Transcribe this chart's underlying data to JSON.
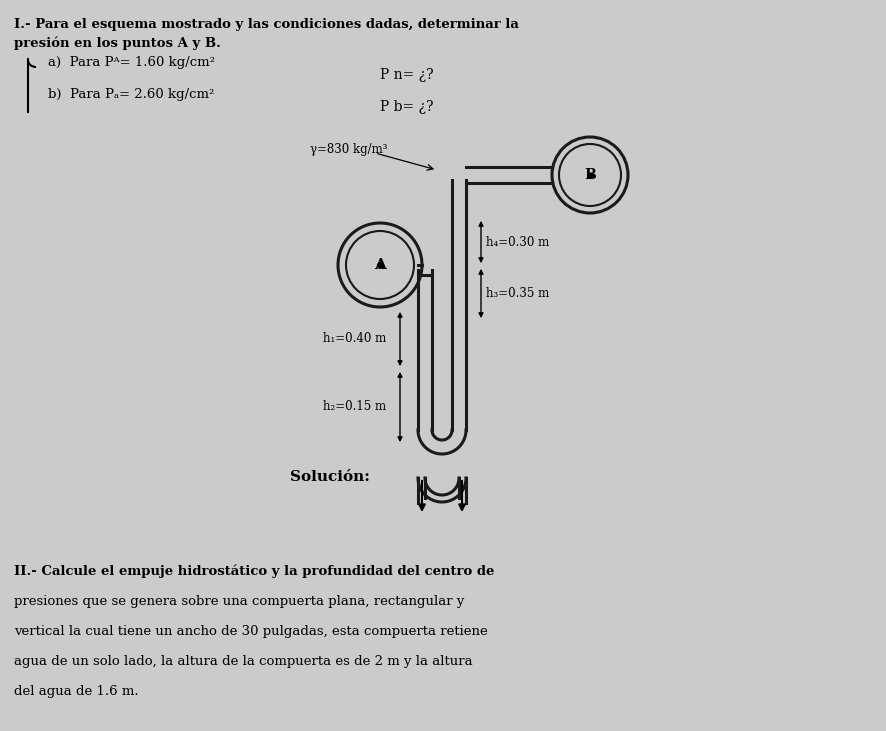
{
  "bg_color": "#cbcbcb",
  "title1": "I.- Para el esquema mostrado y las condiciones dadas, determinar la",
  "title2": "presión en los puntos A y B.",
  "part_a": "a)  Para Pᴬ= 1.60 kg/cm²",
  "part_b": "b)  Para Pₐ= 2.60 kg/cm²",
  "pn_label": "P n= ¿?",
  "pb_label": "P b= ¿?",
  "gamma_label": "γ=830 kg/m³",
  "h1_label": "h₁=0.40 m",
  "h2_label": "h₂=0.15 m",
  "h3_label": "h₃=0.35 m",
  "hs_label": "h₄=0.30 m",
  "solucion_label": "Solución:",
  "label_A": "A",
  "label_B": "B",
  "title_II": "II.- Calcule el empuje hidrostático y la profundidad del centro de",
  "text_II_line2": "presiones que se genera sobre una compuerta plana, rectangular y",
  "text_II_line3": "vertical la cual tiene un ancho de 30 pulgadas, esta compuerta retiene",
  "text_II_line4": "agua de un solo lado, la altura de la compuerta es de 2 m y la altura",
  "text_II_line5": "del agua de 1.6 m."
}
